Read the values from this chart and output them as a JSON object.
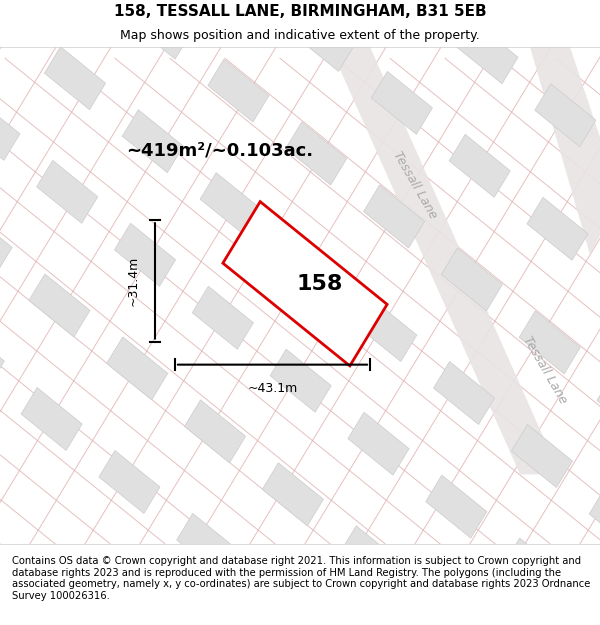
{
  "title": "158, TESSALL LANE, BIRMINGHAM, B31 5EB",
  "subtitle": "Map shows position and indicative extent of the property.",
  "footer": "Contains OS data © Crown copyright and database right 2021. This information is subject to Crown copyright and database rights 2023 and is reproduced with the permission of HM Land Registry. The polygons (including the associated geometry, namely x, y co-ordinates) are subject to Crown copyright and database rights 2023 Ordnance Survey 100026316.",
  "area_label": "~419m²/~0.103ac.",
  "house_number": "158",
  "width_label": "~43.1m",
  "height_label": "~31.4m",
  "bg_color": "#f5f0f0",
  "map_bg": "#f8f4f4",
  "road_color": "#e8e8e8",
  "road_line_color": "#e0b0b0",
  "block_color": "#e0e0e0",
  "block_edge_color": "#cccccc",
  "property_fill": "#ffffff",
  "property_edge": "#dd0000",
  "tessall_lane_label": "Tessall Lane",
  "title_fontsize": 11,
  "subtitle_fontsize": 9,
  "footer_fontsize": 7.2
}
